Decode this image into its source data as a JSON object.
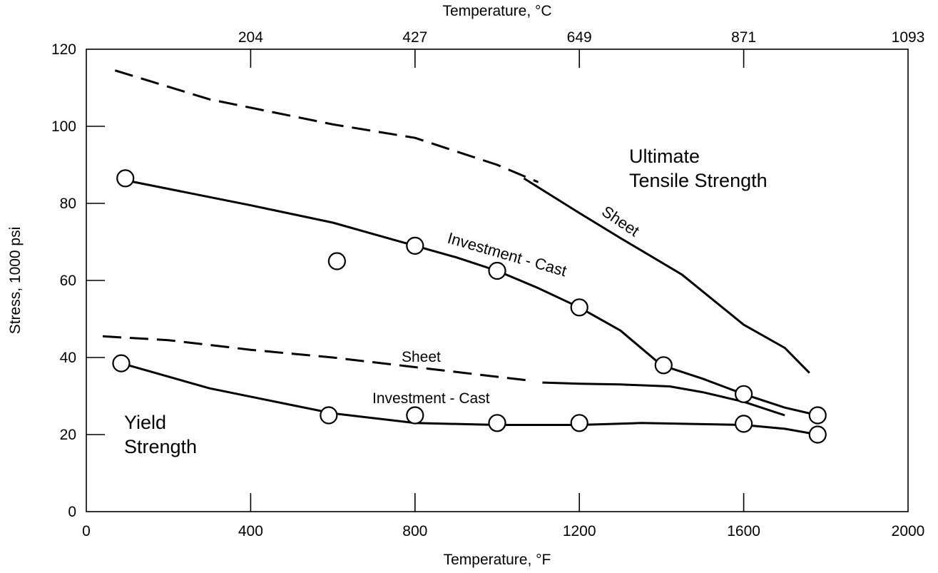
{
  "chart_data": {
    "type": "line",
    "title": "",
    "xlabel": "Temperature, °F",
    "x2label": "Temperature, °C",
    "ylabel": "Stress, 1000 psi",
    "xlim": [
      0,
      2000
    ],
    "ylim": [
      0,
      120
    ],
    "x_ticks": [
      0,
      400,
      800,
      1200,
      1600,
      2000
    ],
    "y_ticks": [
      0,
      20,
      40,
      60,
      80,
      100,
      120
    ],
    "x2_ticks": [
      {
        "f": 400,
        "label": "204"
      },
      {
        "f": 800,
        "label": "427"
      },
      {
        "f": 1200,
        "label": "649"
      },
      {
        "f": 1600,
        "label": "871"
      },
      {
        "f": 2000,
        "label": "1093"
      }
    ],
    "grid": false,
    "series": [
      {
        "name": "Sheet",
        "group": "Ultimate Tensile Strength",
        "style": "dashed",
        "x": [
          70,
          300,
          600,
          800,
          1000,
          1100
        ],
        "y": [
          114.5,
          107,
          100.5,
          97,
          90,
          85.5
        ]
      },
      {
        "name": "Sheet",
        "group": "Ultimate Tensile Strength",
        "style": "solid",
        "x": [
          1065,
          1200,
          1300,
          1450,
          1600,
          1700,
          1760
        ],
        "y": [
          86.5,
          77.5,
          71,
          61.5,
          48.5,
          42.5,
          36
        ]
      },
      {
        "name": "Investment - Cast",
        "group": "Ultimate Tensile Strength",
        "style": "solid",
        "x": [
          95,
          400,
          600,
          800,
          900,
          1000,
          1100,
          1200,
          1300,
          1400,
          1500,
          1600,
          1700,
          1780
        ],
        "y": [
          86,
          79.5,
          75,
          69,
          66,
          62.5,
          58,
          53,
          47,
          38,
          34.5,
          30.5,
          27,
          25
        ]
      },
      {
        "name": "Sheet",
        "group": "Yield Strength",
        "style": "dashed",
        "x": [
          40,
          200,
          400,
          600,
          800,
          1000,
          1080
        ],
        "y": [
          45.5,
          44.5,
          42,
          40,
          37.5,
          35,
          34
        ]
      },
      {
        "name": "Sheet",
        "group": "Yield Strength",
        "style": "solid",
        "x": [
          1110,
          1200,
          1300,
          1420,
          1500,
          1600,
          1700
        ],
        "y": [
          33.5,
          33.2,
          33,
          32.5,
          31,
          28.5,
          25
        ]
      },
      {
        "name": "Investment - Cast",
        "group": "Yield Strength",
        "style": "solid",
        "x": [
          85,
          300,
          600,
          800,
          1000,
          1200,
          1350,
          1600,
          1700,
          1780
        ],
        "y": [
          38.5,
          32,
          25.5,
          23,
          22.5,
          22.5,
          23,
          22.5,
          21.5,
          20
        ]
      }
    ],
    "markers": [
      {
        "x": 95,
        "y": 86.5
      },
      {
        "x": 610,
        "y": 65
      },
      {
        "x": 800,
        "y": 69
      },
      {
        "x": 1000,
        "y": 62.5
      },
      {
        "x": 1200,
        "y": 53
      },
      {
        "x": 1405,
        "y": 38
      },
      {
        "x": 1600,
        "y": 30.5
      },
      {
        "x": 1780,
        "y": 25
      },
      {
        "x": 85,
        "y": 38.5
      },
      {
        "x": 590,
        "y": 25
      },
      {
        "x": 800,
        "y": 25
      },
      {
        "x": 1000,
        "y": 23
      },
      {
        "x": 1200,
        "y": 23
      },
      {
        "x": 1600,
        "y": 22.8
      },
      {
        "x": 1780,
        "y": 20
      }
    ],
    "annotations": {
      "uts_line1": "Ultimate",
      "uts_line2": "Tensile Strength",
      "uts_sheet": "Sheet",
      "uts_cast": "Investment - Cast",
      "ys_sheet": "Sheet",
      "ys_cast": "Investment - Cast",
      "ys_line1": "Yield",
      "ys_line2": "Strength"
    }
  }
}
